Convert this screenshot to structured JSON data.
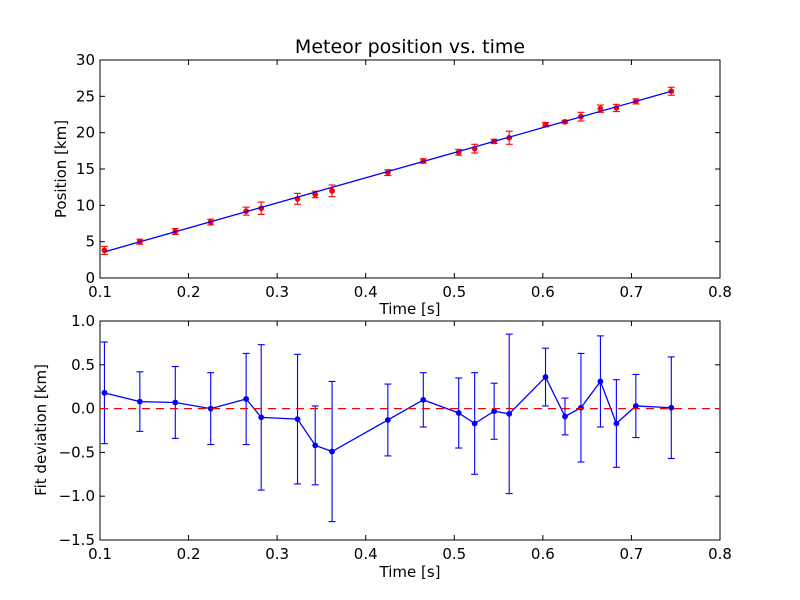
{
  "chart_data": [
    {
      "type": "scatter",
      "title": "Meteor position vs. time",
      "xlabel": "Time [s]",
      "ylabel": "Position [km]",
      "xlim": [
        0.1,
        0.8
      ],
      "ylim": [
        0,
        30
      ],
      "xticks": [
        "0.1",
        "0.2",
        "0.3",
        "0.4",
        "0.5",
        "0.6",
        "0.7",
        "0.8"
      ],
      "yticks": [
        "0",
        "5",
        "10",
        "15",
        "20",
        "25",
        "30"
      ],
      "grid": false,
      "series": [
        {
          "kind": "scatter-errorbar",
          "color": "#ff0000",
          "errbar_color": "#ff0000",
          "x": [
            0.105,
            0.145,
            0.185,
            0.225,
            0.265,
            0.282,
            0.323,
            0.343,
            0.362,
            0.425,
            0.465,
            0.505,
            0.523,
            0.545,
            0.562,
            0.603,
            0.625,
            0.643,
            0.665,
            0.683,
            0.705,
            0.745
          ],
          "y": [
            3.8,
            5.0,
            6.4,
            7.7,
            9.2,
            9.6,
            10.9,
            11.5,
            12.0,
            14.5,
            16.1,
            17.3,
            17.8,
            18.8,
            19.3,
            21.1,
            21.5,
            22.2,
            23.3,
            23.4,
            24.3,
            25.7
          ],
          "yerr": [
            0.55,
            0.35,
            0.4,
            0.4,
            0.55,
            0.85,
            0.75,
            0.45,
            0.8,
            0.4,
            0.3,
            0.4,
            0.6,
            0.3,
            0.9,
            0.3,
            0.2,
            0.6,
            0.5,
            0.5,
            0.35,
            0.55
          ]
        },
        {
          "kind": "line",
          "color": "#0000ff",
          "x": [
            0.105,
            0.745
          ],
          "y": [
            3.6,
            25.7
          ]
        }
      ]
    },
    {
      "type": "line",
      "title": "",
      "xlabel": "Time [s]",
      "ylabel": "Fit deviation [km]",
      "xlim": [
        0.1,
        0.8
      ],
      "ylim": [
        -1.5,
        1.0
      ],
      "xticks": [
        "0.1",
        "0.2",
        "0.3",
        "0.4",
        "0.5",
        "0.6",
        "0.7",
        "0.8"
      ],
      "yticks": [
        "−1.5",
        "−1.0",
        "−0.5",
        "0.0",
        "0.5",
        "1.0"
      ],
      "yticks_values": [
        -1.5,
        -1.0,
        -0.5,
        0.0,
        0.5,
        1.0
      ],
      "grid": false,
      "series": [
        {
          "kind": "line-errorbar",
          "color": "#0000ff",
          "x": [
            0.105,
            0.145,
            0.185,
            0.225,
            0.265,
            0.282,
            0.323,
            0.343,
            0.362,
            0.425,
            0.465,
            0.505,
            0.523,
            0.545,
            0.562,
            0.603,
            0.625,
            0.643,
            0.665,
            0.683,
            0.705,
            0.745
          ],
          "y": [
            0.18,
            0.08,
            0.07,
            0.0,
            0.11,
            -0.1,
            -0.12,
            -0.42,
            -0.49,
            -0.13,
            0.1,
            -0.05,
            -0.17,
            -0.03,
            -0.06,
            0.36,
            -0.09,
            0.01,
            0.31,
            -0.17,
            0.03,
            0.01
          ],
          "yerr": [
            0.58,
            0.34,
            0.41,
            0.41,
            0.52,
            0.83,
            0.74,
            0.45,
            0.8,
            0.41,
            0.31,
            0.4,
            0.58,
            0.32,
            0.91,
            0.33,
            0.21,
            0.62,
            0.52,
            0.5,
            0.36,
            0.58
          ]
        },
        {
          "kind": "dashed-reference",
          "color": "#ff0000",
          "y": 0.0
        }
      ]
    }
  ]
}
